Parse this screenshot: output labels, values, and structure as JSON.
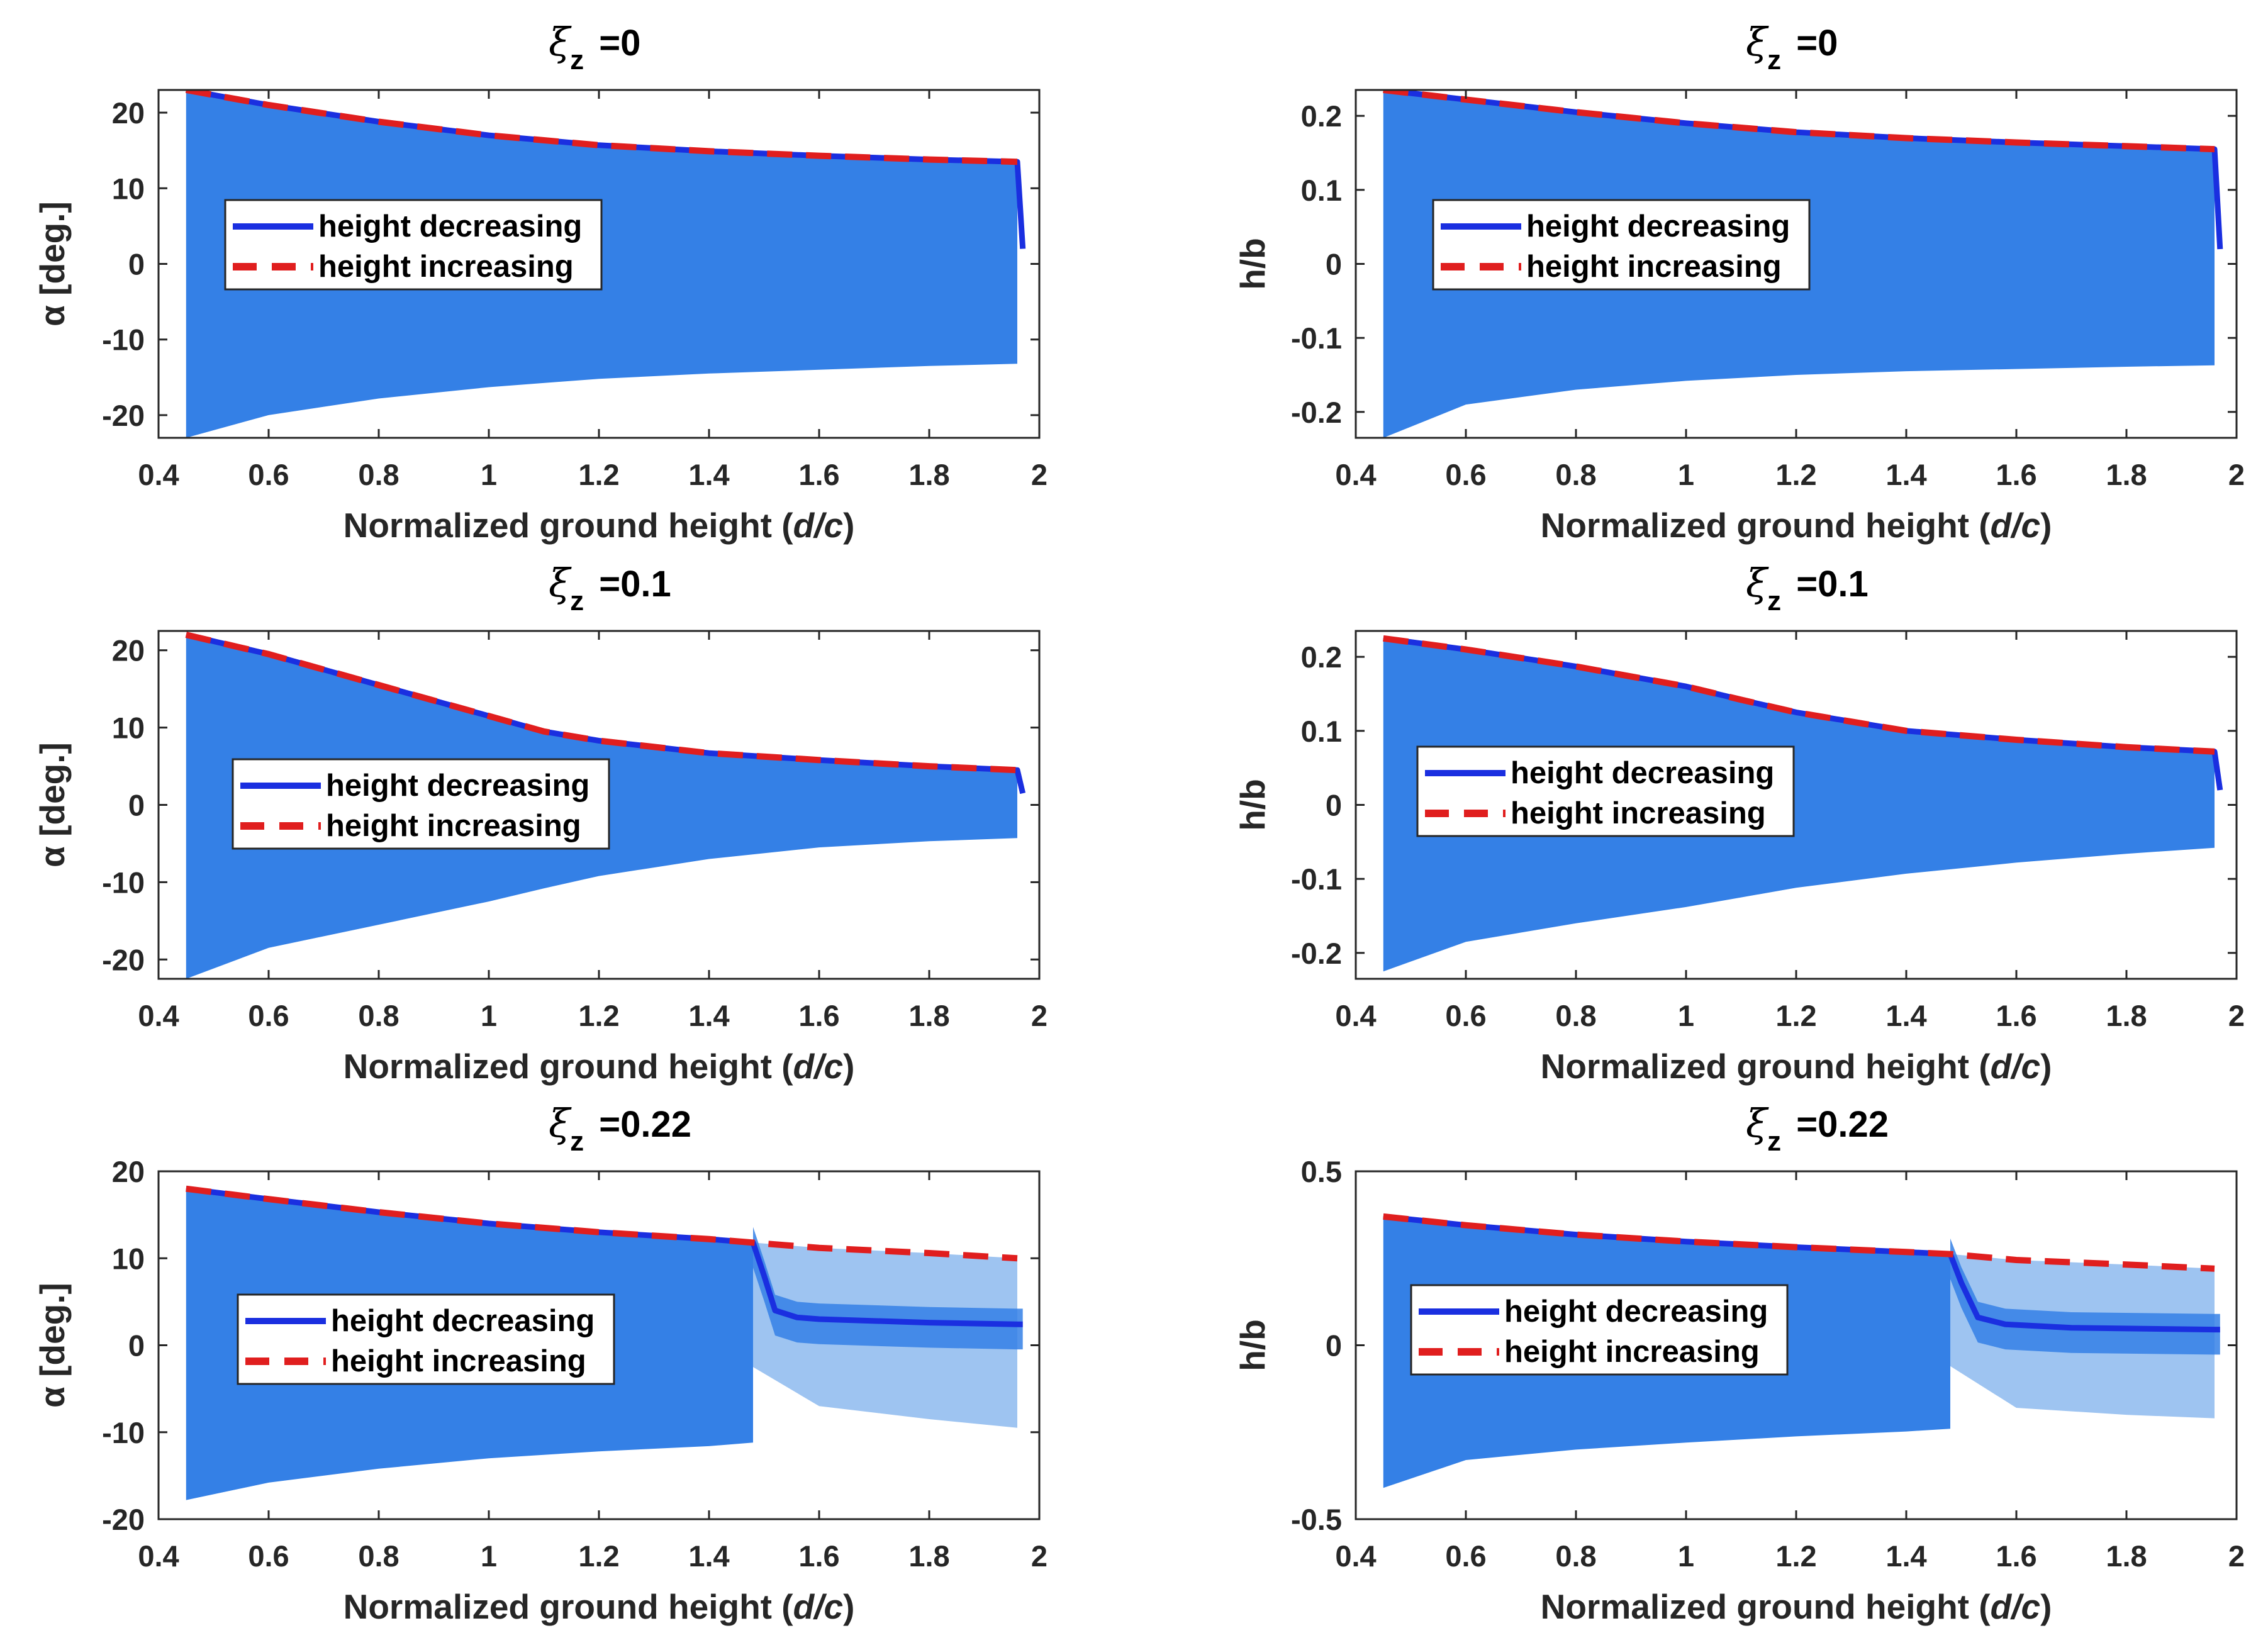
{
  "colors": {
    "envelope": "#3480e6",
    "envelope_light": "#9ec4f1",
    "decreasing_line": "#1a2fe0",
    "increasing_line": "#e01e1e",
    "axis": "#262626"
  },
  "chart_data": [
    {
      "type": "area",
      "panel": "row1-left",
      "title_symbol": "ξ",
      "title_sub": "z",
      "title_value": "=0",
      "xlabel": "Normalized ground height",
      "xlabel_italic": "d/c",
      "ylabel": "α [deg.]",
      "xlim": [
        0.4,
        2
      ],
      "ylim": [
        -23,
        23
      ],
      "xticks": [
        "0.4",
        "0.6",
        "0.8",
        "1",
        "1.2",
        "1.4",
        "1.6",
        "1.8",
        "2"
      ],
      "yticks": [
        "-20",
        "-10",
        "0",
        "10",
        "20"
      ],
      "ytick_values": [
        -20,
        -10,
        0,
        10,
        20
      ],
      "legend": [
        "height decreasing",
        "height increasing"
      ],
      "x": [
        0.45,
        0.6,
        0.8,
        1.0,
        1.2,
        1.4,
        1.6,
        1.8,
        1.96
      ],
      "upper": [
        23,
        21,
        18.8,
        17.0,
        15.7,
        14.9,
        14.3,
        13.8,
        13.5
      ],
      "lower": [
        -23,
        -20,
        -17.8,
        -16.3,
        -15.2,
        -14.5,
        -14.0,
        -13.5,
        -13.2
      ],
      "series": [
        {
          "name": "height decreasing",
          "x": [
            0.45,
            0.6,
            0.8,
            1.0,
            1.2,
            1.4,
            1.6,
            1.8,
            1.96,
            1.97
          ],
          "values": [
            23,
            21,
            18.8,
            17.0,
            15.7,
            14.9,
            14.3,
            13.8,
            13.5,
            2
          ]
        },
        {
          "name": "height increasing",
          "x": [
            0.45,
            0.6,
            0.8,
            1.0,
            1.2,
            1.4,
            1.6,
            1.8,
            1.96
          ],
          "values": [
            23,
            21,
            18.8,
            17.0,
            15.7,
            14.9,
            14.3,
            13.8,
            13.5
          ]
        }
      ]
    },
    {
      "type": "area",
      "panel": "row1-right",
      "title_symbol": "ξ",
      "title_sub": "z",
      "title_value": "=0",
      "xlabel": "Normalized ground height",
      "xlabel_italic": "d/c",
      "ylabel": "h/b",
      "xlim": [
        0.4,
        2
      ],
      "ylim": [
        -0.235,
        0.235
      ],
      "xticks": [
        "0.4",
        "0.6",
        "0.8",
        "1",
        "1.2",
        "1.4",
        "1.6",
        "1.8",
        "2"
      ],
      "yticks": [
        "-0.2",
        "-0.1",
        "0",
        "0.1",
        "0.2"
      ],
      "ytick_values": [
        -0.2,
        -0.1,
        0,
        0.1,
        0.2
      ],
      "legend": [
        "height decreasing",
        "height increasing"
      ],
      "x": [
        0.45,
        0.6,
        0.8,
        1.0,
        1.2,
        1.4,
        1.6,
        1.8,
        1.96
      ],
      "upper": [
        0.235,
        0.222,
        0.205,
        0.19,
        0.178,
        0.17,
        0.164,
        0.159,
        0.155
      ],
      "lower": [
        -0.235,
        -0.19,
        -0.17,
        -0.158,
        -0.15,
        -0.145,
        -0.142,
        -0.139,
        -0.137
      ],
      "series": [
        {
          "name": "height decreasing",
          "x": [
            0.45,
            0.6,
            0.8,
            1.0,
            1.2,
            1.4,
            1.6,
            1.8,
            1.96,
            1.97
          ],
          "values": [
            0.235,
            0.222,
            0.205,
            0.19,
            0.178,
            0.17,
            0.164,
            0.159,
            0.155,
            0.02
          ]
        },
        {
          "name": "height increasing",
          "x": [
            0.45,
            0.6,
            0.8,
            1.0,
            1.2,
            1.4,
            1.6,
            1.8,
            1.96
          ],
          "values": [
            0.235,
            0.222,
            0.205,
            0.19,
            0.178,
            0.17,
            0.164,
            0.159,
            0.155
          ]
        }
      ]
    },
    {
      "type": "area",
      "panel": "row2-left",
      "title_symbol": "ξ",
      "title_sub": "z",
      "title_value": "=0.1",
      "xlabel": "Normalized ground height",
      "xlabel_italic": "d/c",
      "ylabel": "α [deg.]",
      "xlim": [
        0.4,
        2
      ],
      "ylim": [
        -22.5,
        22.5
      ],
      "xticks": [
        "0.4",
        "0.6",
        "0.8",
        "1",
        "1.2",
        "1.4",
        "1.6",
        "1.8",
        "2"
      ],
      "yticks": [
        "-20",
        "-10",
        "0",
        "10",
        "20"
      ],
      "ytick_values": [
        -20,
        -10,
        0,
        10,
        20
      ],
      "legend": [
        "height decreasing",
        "height increasing"
      ],
      "x": [
        0.45,
        0.6,
        0.8,
        1.0,
        1.1,
        1.2,
        1.4,
        1.6,
        1.8,
        1.96
      ],
      "upper": [
        22,
        19.5,
        15.5,
        11.5,
        9.5,
        8.3,
        6.7,
        5.8,
        5.0,
        4.5
      ],
      "lower": [
        -22.5,
        -18.5,
        -15.5,
        -12.5,
        -10.8,
        -9.2,
        -7.0,
        -5.5,
        -4.7,
        -4.3
      ],
      "series": [
        {
          "name": "height decreasing",
          "x": [
            0.45,
            0.6,
            0.8,
            1.0,
            1.1,
            1.2,
            1.4,
            1.6,
            1.8,
            1.96,
            1.97
          ],
          "values": [
            22,
            19.5,
            15.5,
            11.5,
            9.5,
            8.3,
            6.7,
            5.8,
            5.0,
            4.5,
            1.5
          ]
        },
        {
          "name": "height increasing",
          "x": [
            0.45,
            0.6,
            0.8,
            1.0,
            1.1,
            1.2,
            1.4,
            1.6,
            1.8,
            1.96
          ],
          "values": [
            22,
            19.5,
            15.5,
            11.5,
            9.5,
            8.3,
            6.7,
            5.8,
            5.0,
            4.5
          ]
        }
      ]
    },
    {
      "type": "area",
      "panel": "row2-right",
      "title_symbol": "ξ",
      "title_sub": "z",
      "title_value": "=0.1",
      "xlabel": "Normalized ground height",
      "xlabel_italic": "d/c",
      "ylabel": "h/b",
      "xlim": [
        0.4,
        2
      ],
      "ylim": [
        -0.235,
        0.235
      ],
      "xticks": [
        "0.4",
        "0.6",
        "0.8",
        "1",
        "1.2",
        "1.4",
        "1.6",
        "1.8",
        "2"
      ],
      "yticks": [
        "-0.2",
        "-0.1",
        "0",
        "0.1",
        "0.2"
      ],
      "ytick_values": [
        -0.2,
        -0.1,
        0,
        0.1,
        0.2
      ],
      "legend": [
        "height decreasing",
        "height increasing"
      ],
      "x": [
        0.45,
        0.6,
        0.8,
        1.0,
        1.1,
        1.2,
        1.4,
        1.6,
        1.8,
        1.96
      ],
      "upper": [
        0.225,
        0.21,
        0.187,
        0.16,
        0.142,
        0.125,
        0.1,
        0.088,
        0.078,
        0.072
      ],
      "lower": [
        -0.225,
        -0.185,
        -0.16,
        -0.138,
        -0.125,
        -0.112,
        -0.093,
        -0.078,
        -0.066,
        -0.058
      ],
      "series": [
        {
          "name": "height decreasing",
          "x": [
            0.45,
            0.6,
            0.8,
            1.0,
            1.1,
            1.2,
            1.4,
            1.6,
            1.8,
            1.96,
            1.97
          ],
          "values": [
            0.225,
            0.21,
            0.187,
            0.16,
            0.142,
            0.125,
            0.1,
            0.088,
            0.078,
            0.072,
            0.02
          ]
        },
        {
          "name": "height increasing",
          "x": [
            0.45,
            0.6,
            0.8,
            1.0,
            1.1,
            1.2,
            1.4,
            1.6,
            1.8,
            1.96
          ],
          "values": [
            0.225,
            0.21,
            0.187,
            0.16,
            0.142,
            0.125,
            0.1,
            0.088,
            0.078,
            0.072
          ]
        }
      ]
    },
    {
      "type": "area",
      "panel": "row3-left",
      "title_symbol": "ξ",
      "title_sub": "z",
      "title_value": "=0.22",
      "xlabel": "Normalized ground height",
      "xlabel_italic": "d/c",
      "ylabel": "α [deg.]",
      "xlim": [
        0.4,
        2
      ],
      "ylim": [
        -20,
        20
      ],
      "xticks": [
        "0.4",
        "0.6",
        "0.8",
        "1",
        "1.2",
        "1.4",
        "1.6",
        "1.8",
        "2"
      ],
      "yticks": [
        "-20",
        "-10",
        "0",
        "10",
        "20"
      ],
      "ytick_values": [
        -20,
        -10,
        0,
        10,
        20
      ],
      "legend": [
        "height decreasing",
        "height increasing"
      ],
      "x": [
        0.45,
        0.6,
        0.8,
        1.0,
        1.2,
        1.4,
        1.48
      ],
      "upper": [
        18,
        16.8,
        15.3,
        14.0,
        13.0,
        12.2,
        11.8
      ],
      "lower": [
        -17.8,
        -15.8,
        -14.2,
        -13.0,
        -12.2,
        -11.6,
        -11.2
      ],
      "light_x": [
        1.48,
        1.6,
        1.8,
        1.96
      ],
      "light_upper": [
        11.8,
        11.2,
        10.6,
        10.0
      ],
      "light_lower": [
        -2.5,
        -7.0,
        -8.5,
        -9.5
      ],
      "series": [
        {
          "name": "height decreasing",
          "x": [
            0.45,
            0.6,
            0.8,
            1.0,
            1.2,
            1.4,
            1.48,
            1.5,
            1.52,
            1.56,
            1.6,
            1.8,
            1.96,
            1.97
          ],
          "values": [
            18,
            16.8,
            15.3,
            14.0,
            13.0,
            12.2,
            11.8,
            8.0,
            4.0,
            3.2,
            3.0,
            2.6,
            2.4,
            2.4
          ]
        },
        {
          "name": "height increasing",
          "x": [
            0.45,
            0.6,
            0.8,
            1.0,
            1.2,
            1.4,
            1.48,
            1.6,
            1.8,
            1.96
          ],
          "values": [
            18,
            16.8,
            15.3,
            14.0,
            13.0,
            12.2,
            11.8,
            11.2,
            10.6,
            10.0
          ]
        }
      ]
    },
    {
      "type": "area",
      "panel": "row3-right",
      "title_symbol": "ξ",
      "title_sub": "z",
      "title_value": "=0.22",
      "xlabel": "Normalized ground height",
      "xlabel_italic": "d/c",
      "ylabel": "h/b",
      "xlim": [
        0.4,
        2
      ],
      "ylim": [
        -0.5,
        0.5
      ],
      "xticks": [
        "0.4",
        "0.6",
        "0.8",
        "1",
        "1.2",
        "1.4",
        "1.6",
        "1.8",
        "2"
      ],
      "yticks": [
        "-0.5",
        "0",
        "0.5"
      ],
      "ytick_values": [
        -0.5,
        0,
        0.5
      ],
      "legend": [
        "height decreasing",
        "height increasing"
      ],
      "x": [
        0.45,
        0.6,
        0.8,
        1.0,
        1.2,
        1.4,
        1.48
      ],
      "upper": [
        0.37,
        0.345,
        0.318,
        0.298,
        0.282,
        0.268,
        0.262
      ],
      "lower": [
        -0.41,
        -0.33,
        -0.3,
        -0.28,
        -0.262,
        -0.248,
        -0.24
      ],
      "light_x": [
        1.48,
        1.6,
        1.8,
        1.96
      ],
      "light_upper": [
        0.262,
        0.245,
        0.232,
        0.22
      ],
      "light_lower": [
        -0.06,
        -0.18,
        -0.2,
        -0.21
      ],
      "series": [
        {
          "name": "height decreasing",
          "x": [
            0.45,
            0.6,
            0.8,
            1.0,
            1.2,
            1.4,
            1.48,
            1.5,
            1.53,
            1.58,
            1.7,
            1.96,
            1.97
          ],
          "values": [
            0.37,
            0.345,
            0.318,
            0.298,
            0.282,
            0.268,
            0.262,
            0.18,
            0.08,
            0.06,
            0.05,
            0.045,
            0.045
          ]
        },
        {
          "name": "height increasing",
          "x": [
            0.45,
            0.6,
            0.8,
            1.0,
            1.2,
            1.4,
            1.48,
            1.6,
            1.8,
            1.96
          ],
          "values": [
            0.37,
            0.345,
            0.318,
            0.298,
            0.282,
            0.268,
            0.262,
            0.245,
            0.232,
            0.22
          ]
        }
      ]
    }
  ]
}
